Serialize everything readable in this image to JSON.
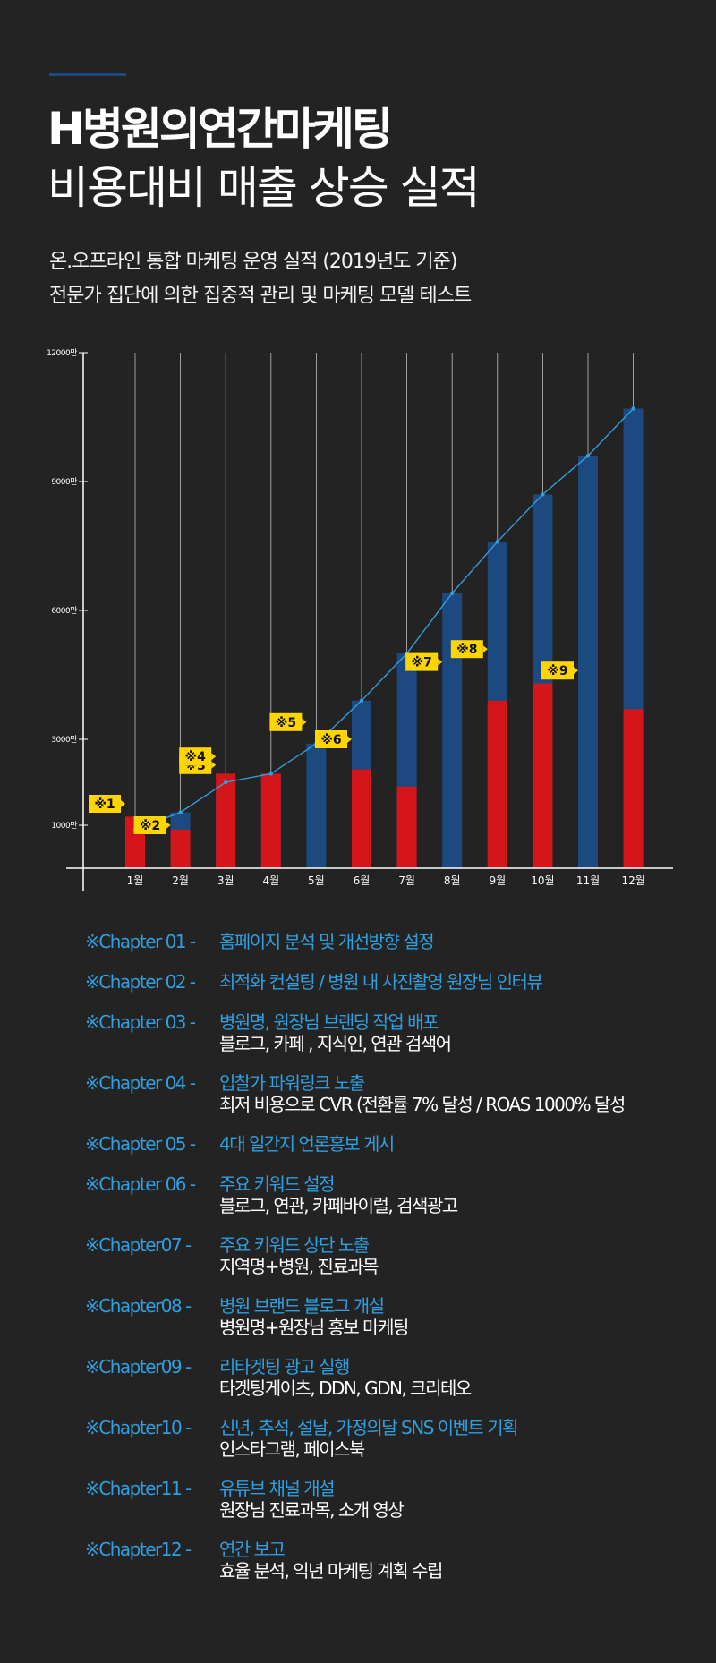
{
  "header": {
    "title_line1": "H병원의연간마케팅",
    "title_line2": "비용대비 매출 상승 실적",
    "subtitle_line1": "온.오프라인 통합 마케팅 운영 실적 (2019년도 기준)",
    "subtitle_line2": "전문가 집단에 의한 집중적 관리 및 마케팅 모델 테스트"
  },
  "colors": {
    "background": "#232323",
    "revenue_bar": "#1c4a80",
    "cost_bar": "#d4161b",
    "line": "#2f9fe0",
    "marker_bg": "#ffd500",
    "accent_text": "#2f9fe0"
  },
  "chart_data": {
    "type": "bar",
    "categories": [
      "1월",
      "2월",
      "3월",
      "4월",
      "5월",
      "6월",
      "7월",
      "8월",
      "9월",
      "10월",
      "11월",
      "12월"
    ],
    "series": [
      {
        "type": "bar",
        "values": [
          900,
          1300,
          2000,
          2200,
          2900,
          3900,
          5000,
          6400,
          7600,
          8700,
          9600,
          10700
        ]
      },
      {
        "type": "bar",
        "values": [
          1200,
          900,
          2200,
          2200,
          0,
          2300,
          1900,
          0,
          3900,
          4300,
          0,
          3700
        ]
      },
      {
        "type": "line",
        "values": [
          900,
          1300,
          2000,
          2200,
          2900,
          3900,
          5000,
          6400,
          7600,
          8700,
          9600,
          10700
        ]
      }
    ],
    "yticks": [
      {
        "value": 1000,
        "label": "1000만"
      },
      {
        "value": 3000,
        "label": "3000만"
      },
      {
        "value": 6000,
        "label": "6000만"
      },
      {
        "value": 9000,
        "label": "9000만"
      },
      {
        "value": 12000,
        "label": "12000만"
      }
    ],
    "ylim": [
      0,
      12000
    ],
    "grid": "vertical",
    "annotations": [
      {
        "label": "※1",
        "category_index": 0,
        "value": 1500
      },
      {
        "label": "※2",
        "category_index": 1,
        "value": 1000
      },
      {
        "label": "※3",
        "category_index": 2,
        "value": 2400
      },
      {
        "label": "※4",
        "category_index": 2,
        "value": 2600
      },
      {
        "label": "※5",
        "category_index": 4,
        "value": 3400
      },
      {
        "label": "※6",
        "category_index": 5,
        "value": 3000
      },
      {
        "label": "※7",
        "category_index": 7,
        "value": 4800
      },
      {
        "label": "※8",
        "category_index": 8,
        "value": 5100
      },
      {
        "label": "※9",
        "category_index": 10,
        "value": 4600
      }
    ]
  },
  "chapters": [
    {
      "label": "※Chapter 01 -",
      "title": "홈페이지 분석 및 개선방향 설정",
      "detail": ""
    },
    {
      "label": "※Chapter 02 -",
      "title": "최적화 컨설팅 / 병원 내 사진촬영 원장님 인터뷰",
      "detail": ""
    },
    {
      "label": "※Chapter 03 -",
      "title": "병원명, 원장님 브랜딩 작업 배포",
      "detail": "블로그, 카페 , 지식인, 연관 검색어"
    },
    {
      "label": "※Chapter 04 -",
      "title": "입찰가 파워링크 노출",
      "detail": "최저 비용으로 CVR (전환률 7% 달성 / ROAS 1000% 달성"
    },
    {
      "label": "※Chapter 05 -",
      "title": "4대 일간지 언론홍보 게시",
      "detail": ""
    },
    {
      "label": "※Chapter 06 -",
      "title": "주요 키워드 설정",
      "detail": "블로그, 연관, 카페바이럴, 검색광고"
    },
    {
      "label": "※Chapter07 -",
      "title": "주요 키워드 상단 노출",
      "detail": "지역명+병원, 진료과목"
    },
    {
      "label": "※Chapter08  -",
      "title": "병원 브랜드 블로그 개설",
      "detail": "병원명+원장님 홍보 마케팅"
    },
    {
      "label": "※Chapter09 -",
      "title": "리타겟팅 광고 실행",
      "detail": "타겟팅게이츠, DDN, GDN, 크리테오"
    },
    {
      "label": "※Chapter10 -",
      "title": "신년, 추석, 설날, 가정의달 SNS 이벤트 기획",
      "detail": "인스타그램, 페이스북"
    },
    {
      "label": "※Chapter11 -",
      "title": "유튜브 채널 개설",
      "detail": "원장님 진료과목, 소개 영상"
    },
    {
      "label": "※Chapter12 -",
      "title": "연간 보고",
      "detail": "효율 분석, 익년 마케팅 계획 수립"
    }
  ]
}
